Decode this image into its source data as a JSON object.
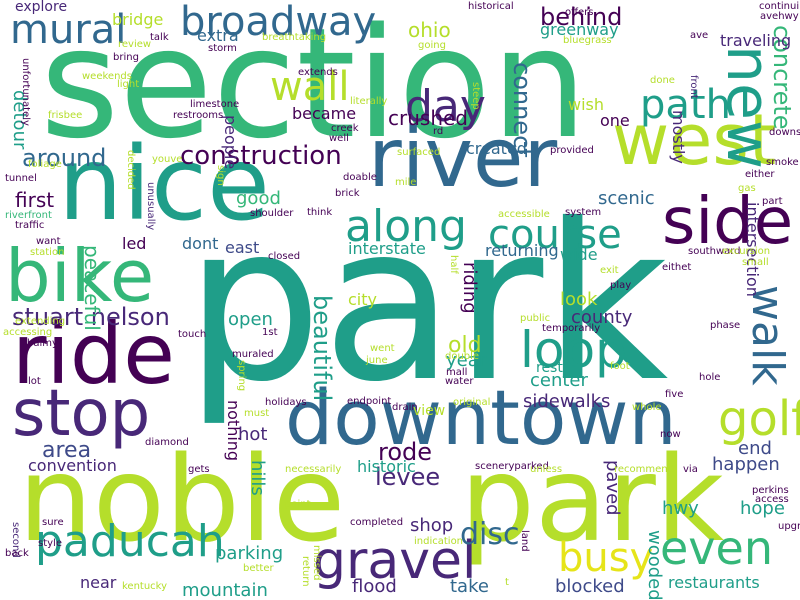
{
  "palette": {
    "dark_purple": "#440154",
    "indigo": "#482878",
    "slate_blue": "#3e4a89",
    "steel_blue": "#31688e",
    "teal_blue": "#26828e",
    "teal": "#1f9e89",
    "green": "#35b779",
    "light_green": "#6ece58",
    "lime": "#b5de2b",
    "yellow": "#fde725",
    "pale_yellow": "#e6e419"
  },
  "words": [
    "park",
    "section",
    "noble",
    "park",
    "nice",
    "river",
    "west",
    "bike",
    "ride",
    "stop",
    "downtown",
    "side",
    "new",
    "broadway",
    "path",
    "mural",
    "wall",
    "day",
    "loop",
    "golf",
    "along",
    "course",
    "even",
    "gravel",
    "paducah",
    "busy",
    "walk",
    "construction",
    "around",
    "stuart nelson",
    "beautiful",
    "levee",
    "rode",
    "disc",
    "concrete",
    "connect",
    "behind",
    "ohio",
    "greenway",
    "area",
    "convention",
    "crushed",
    "became",
    "one",
    "detour",
    "first",
    "created",
    "scenic",
    "interstate",
    "led",
    "peaceful",
    "dont",
    "east",
    "good",
    "look",
    "county",
    "open",
    "old",
    "city",
    "center",
    "riding",
    "year",
    "sidewalks",
    "hot",
    "hills",
    "nothing",
    "historic",
    "end",
    "happen",
    "hope",
    "hwy",
    "paved",
    "wooded",
    "shop",
    "parking",
    "mountain",
    "near",
    "flood",
    "take",
    "blocked",
    "restaurants",
    "explore",
    "bridge",
    "extra",
    "people",
    "traveling",
    "mostly",
    "wish",
    "intersection",
    "returning",
    "wide",
    "rest",
    "view",
    "continuing",
    "avehwy",
    "historical",
    "offers",
    "bluegrass",
    "storm",
    "breathtaking",
    "talk",
    "review",
    "bring",
    "light",
    "weekends",
    "unfortunately",
    "frisbee",
    "limestone",
    "restrooms",
    "literally",
    "extends",
    "creek",
    "well",
    "rd",
    "going",
    "ave",
    "steep",
    "done",
    "front",
    "downs",
    "smoke",
    "surfaced",
    "provided",
    "decided",
    "foliage",
    "tunnel",
    "youve",
    "unusually",
    "sign",
    "doable",
    "brick",
    "mile",
    "shoulder",
    "think",
    "riverfront",
    "traffic",
    "accessible",
    "system",
    "part",
    "gas",
    "either",
    "want",
    "station",
    "closed",
    "half",
    "southward",
    "excursion",
    "small",
    "eithet",
    "exit",
    "play",
    "temporarily",
    "public",
    "phase",
    "extending",
    "balmy",
    "accessing",
    "touch",
    "1st",
    "went",
    "june",
    "double",
    "foot",
    "muraled",
    "spring",
    "lot",
    "holidays",
    "must",
    "mall",
    "water",
    "endpoint",
    "drain",
    "original",
    "whole",
    "five",
    "hole",
    "diamond",
    "now",
    "gets",
    "necessarily",
    "sceneryparked",
    "unless",
    "recommend",
    "via",
    "perkins",
    "access",
    "second",
    "point",
    "sure",
    "completed",
    "land",
    "missed",
    "indication",
    "upgrades",
    "style",
    "back",
    "better",
    "return",
    "kentucky",
    "t"
  ]
}
